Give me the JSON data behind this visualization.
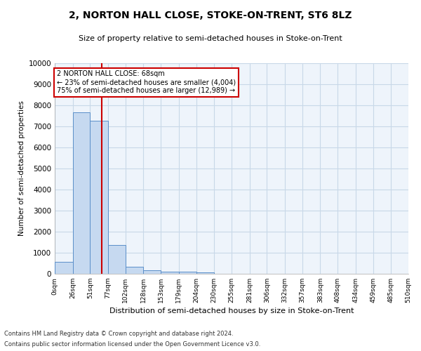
{
  "title": "2, NORTON HALL CLOSE, STOKE-ON-TRENT, ST6 8LZ",
  "subtitle": "Size of property relative to semi-detached houses in Stoke-on-Trent",
  "xlabel": "Distribution of semi-detached houses by size in Stoke-on-Trent",
  "ylabel": "Number of semi-detached properties",
  "footnote1": "Contains HM Land Registry data © Crown copyright and database right 2024.",
  "footnote2": "Contains public sector information licensed under the Open Government Licence v3.0.",
  "bar_edges": [
    0,
    26,
    51,
    77,
    102,
    128,
    153,
    179,
    204,
    230,
    255,
    281,
    306,
    332,
    357,
    383,
    408,
    434,
    459,
    485,
    510
  ],
  "bar_heights": [
    570,
    7650,
    7280,
    1360,
    320,
    160,
    110,
    95,
    55,
    0,
    0,
    0,
    0,
    0,
    0,
    0,
    0,
    0,
    0,
    0
  ],
  "bar_color": "#c6d9f0",
  "bar_edgecolor": "#5b8fc9",
  "grid_color": "#c8d8e8",
  "bg_color": "#eef4fb",
  "vline_color": "#cc0000",
  "vline_x": 68,
  "annotation_text1": "2 NORTON HALL CLOSE: 68sqm",
  "annotation_text2": "← 23% of semi-detached houses are smaller (4,004)",
  "annotation_text3": "75% of semi-detached houses are larger (12,989) →",
  "annotation_box_color": "#ffffff",
  "annotation_box_edgecolor": "#cc0000",
  "ylim": [
    0,
    10000
  ],
  "yticks": [
    0,
    1000,
    2000,
    3000,
    4000,
    5000,
    6000,
    7000,
    8000,
    9000,
    10000
  ],
  "xtick_labels": [
    "0sqm",
    "26sqm",
    "51sqm",
    "77sqm",
    "102sqm",
    "128sqm",
    "153sqm",
    "179sqm",
    "204sqm",
    "230sqm",
    "255sqm",
    "281sqm",
    "306sqm",
    "332sqm",
    "357sqm",
    "383sqm",
    "408sqm",
    "434sqm",
    "459sqm",
    "485sqm",
    "510sqm"
  ],
  "title_fontsize": 10,
  "subtitle_fontsize": 8,
  "xlabel_fontsize": 8,
  "ylabel_fontsize": 7.5,
  "xtick_fontsize": 6.5,
  "ytick_fontsize": 7.5,
  "footnote_fontsize": 6,
  "annotation_fontsize": 7
}
